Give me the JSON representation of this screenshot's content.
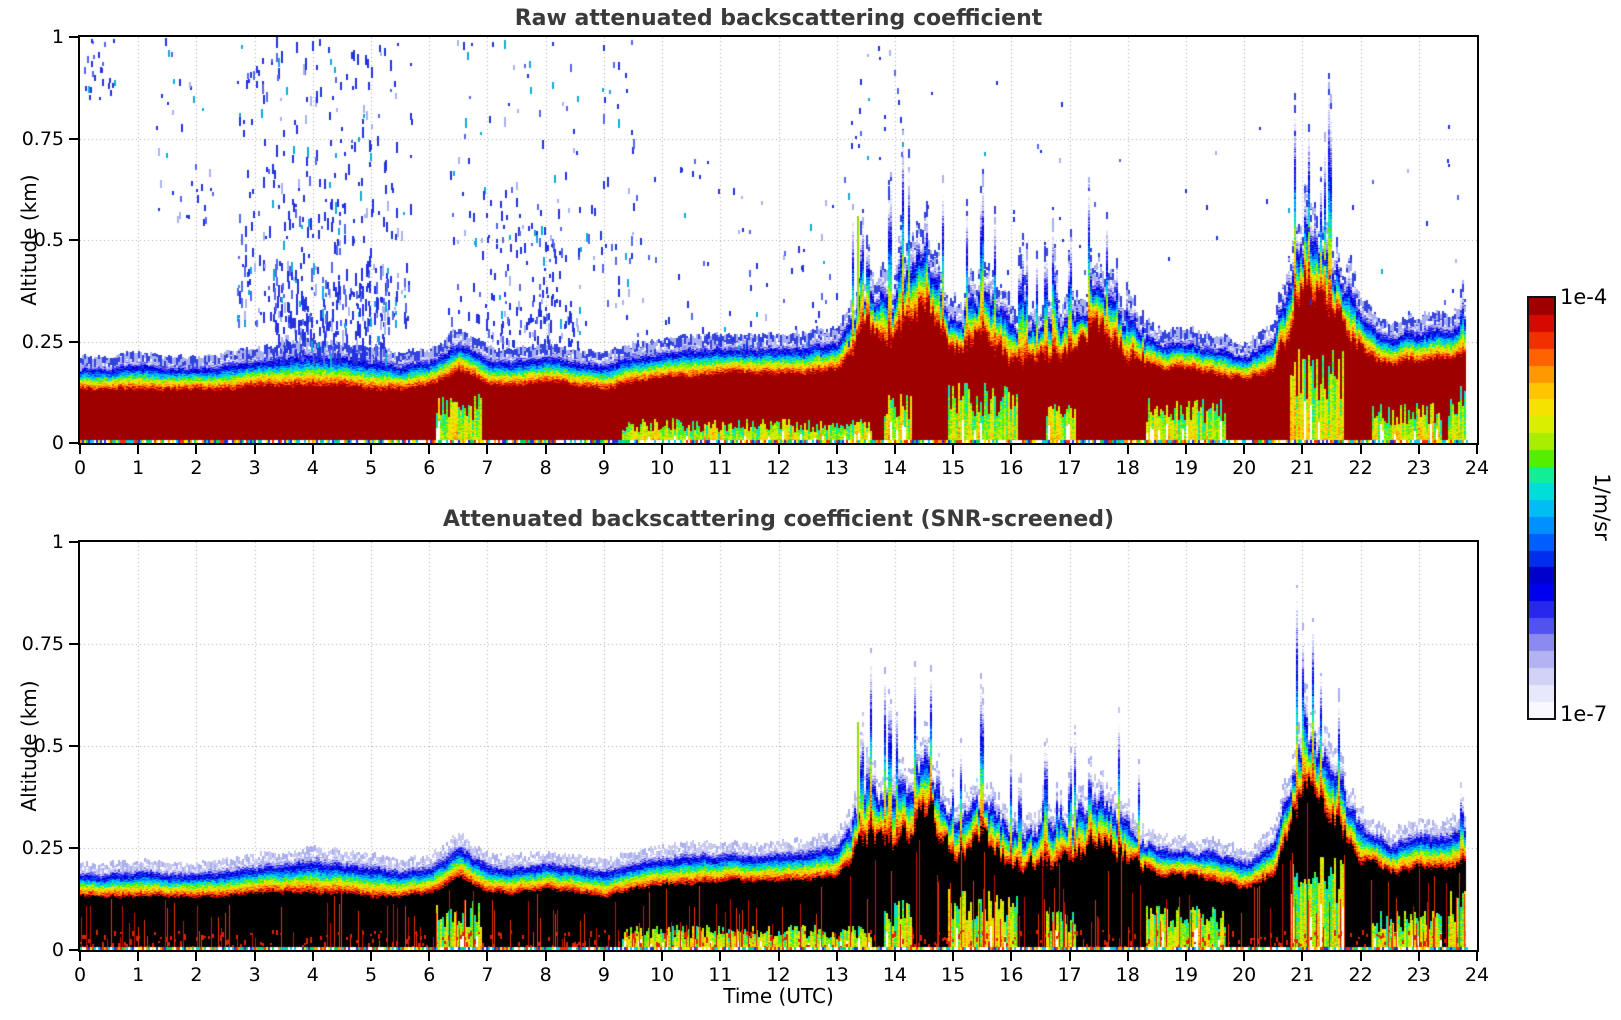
{
  "figure": {
    "background": "#ffffff",
    "title_color": "#3a3a3a",
    "grid_color": "#aaaaaa",
    "axis_color": "#000000"
  },
  "panels": [
    {
      "id": "raw",
      "title": "Raw attenuated backscattering coefficient",
      "ylabel": "Altitude (km)",
      "xlabel": ""
    },
    {
      "id": "screened",
      "title": "Attenuated backscattering coefficient (SNR-screened)",
      "ylabel": "Altitude (km)",
      "xlabel": "Time (UTC)"
    }
  ],
  "axes": {
    "x_tick_labels": [
      "0",
      "1",
      "2",
      "3",
      "4",
      "5",
      "6",
      "7",
      "8",
      "9",
      "10",
      "11",
      "12",
      "13",
      "14",
      "15",
      "16",
      "17",
      "18",
      "19",
      "20",
      "21",
      "22",
      "23",
      "24"
    ],
    "y_tick_labels_top_to_bottom": [
      "1",
      "0.75",
      "0.5",
      "0.25",
      "0"
    ],
    "x_range_hours": [
      0,
      24
    ],
    "y_range_km": [
      0,
      1
    ],
    "grid": "dotted, vertical each hour, horizontal at 0.25/0.5/0.75"
  },
  "colorbar": {
    "top_label": "1e-4",
    "bottom_label": "1e-7",
    "unit_label": "1/m/sr",
    "scale": "log10",
    "levels": 25
  },
  "chart_data": {
    "type": "heatmap",
    "title": "Attenuated backscattering coefficient, raw vs SNR-screened",
    "xlabel": "Time (UTC)",
    "ylabel": "Altitude (km)",
    "x_range": [
      0,
      24
    ],
    "y_range": [
      0,
      1
    ],
    "value_units": "1/m/sr",
    "value_range": [
      1e-07,
      0.0001
    ],
    "data_end_h": 23.82,
    "time_checkpoints_h": [
      0,
      0.5,
      1,
      1.5,
      2,
      2.5,
      3,
      3.5,
      4,
      4.5,
      5,
      5.5,
      6,
      6.5,
      7,
      7.5,
      8,
      8.5,
      9,
      9.5,
      10,
      10.5,
      11,
      11.5,
      12,
      12.5,
      13,
      13.5,
      14,
      14.5,
      15,
      15.5,
      16,
      16.5,
      17,
      17.5,
      18,
      18.5,
      19,
      19.5,
      20,
      20.5,
      21,
      21.5,
      22,
      22.5,
      23,
      23.5,
      24
    ],
    "aerosol_layer_top_km": [
      0.2,
      0.2,
      0.21,
      0.2,
      0.2,
      0.21,
      0.22,
      0.23,
      0.24,
      0.23,
      0.22,
      0.21,
      0.22,
      0.27,
      0.22,
      0.22,
      0.23,
      0.22,
      0.21,
      0.23,
      0.24,
      0.25,
      0.25,
      0.25,
      0.25,
      0.26,
      0.27,
      0.42,
      0.38,
      0.5,
      0.32,
      0.4,
      0.3,
      0.32,
      0.33,
      0.4,
      0.32,
      0.26,
      0.26,
      0.25,
      0.23,
      0.28,
      0.55,
      0.48,
      0.32,
      0.28,
      0.3,
      0.3,
      0.34
    ],
    "strong_core_top_km": [
      0.13,
      0.13,
      0.13,
      0.13,
      0.13,
      0.13,
      0.14,
      0.14,
      0.14,
      0.14,
      0.13,
      0.13,
      0.14,
      0.18,
      0.14,
      0.14,
      0.15,
      0.14,
      0.13,
      0.15,
      0.16,
      0.16,
      0.17,
      0.17,
      0.17,
      0.17,
      0.18,
      0.28,
      0.25,
      0.35,
      0.22,
      0.27,
      0.2,
      0.21,
      0.22,
      0.28,
      0.22,
      0.18,
      0.18,
      0.17,
      0.15,
      0.18,
      0.4,
      0.33,
      0.22,
      0.19,
      0.2,
      0.2,
      0.23
    ],
    "spiky_periods_h": [
      [
        13.2,
        18.3
      ],
      [
        20.55,
        22.0
      ]
    ],
    "spikes": [
      {
        "t": 13.42,
        "h": 0.53
      },
      {
        "t": 13.55,
        "h": 0.46
      },
      {
        "t": 13.9,
        "h": 0.63
      },
      {
        "t": 14.1,
        "h": 0.45
      },
      {
        "t": 14.35,
        "h": 0.5
      },
      {
        "t": 14.55,
        "h": 0.56
      },
      {
        "t": 14.75,
        "h": 0.46
      },
      {
        "t": 15.5,
        "h": 0.63
      },
      {
        "t": 16.15,
        "h": 0.42
      },
      {
        "t": 16.6,
        "h": 0.47
      },
      {
        "t": 17.0,
        "h": 0.45
      },
      {
        "t": 17.35,
        "h": 0.44
      },
      {
        "t": 17.55,
        "h": 0.42
      },
      {
        "t": 18.0,
        "h": 0.36
      },
      {
        "t": 21.05,
        "h": 0.62
      },
      {
        "t": 21.2,
        "h": 0.55
      },
      {
        "t": 21.45,
        "h": 0.5
      },
      {
        "t": 23.75,
        "h": 0.38
      }
    ],
    "colored_streaks": [
      {
        "t": 13.35,
        "z0": 0.3,
        "z1": 0.56,
        "color": "#99dd00"
      }
    ],
    "surface_patches": [
      {
        "t0": 6.1,
        "t1": 6.9,
        "z": 0.1
      },
      {
        "t0": 9.3,
        "t1": 13.6,
        "z": 0.05
      },
      {
        "t0": 13.8,
        "t1": 14.3,
        "z": 0.1
      },
      {
        "t0": 14.9,
        "t1": 16.1,
        "z": 0.12
      },
      {
        "t0": 16.6,
        "t1": 17.1,
        "z": 0.08
      },
      {
        "t0": 18.3,
        "t1": 19.7,
        "z": 0.09
      },
      {
        "t0": 20.8,
        "t1": 21.7,
        "z": 0.19
      },
      {
        "t0": 22.2,
        "t1": 23.4,
        "z": 0.08
      },
      {
        "t0": 23.5,
        "t1": 23.8,
        "z": 0.12
      }
    ],
    "noise_clusters_raw_panel": [
      {
        "t0": 0.05,
        "t1": 0.6,
        "z0": 0.85,
        "z1": 1.0,
        "n": 25,
        "l0": 3,
        "l1": 7
      },
      {
        "t0": 1.3,
        "t1": 2.4,
        "z0": 0.55,
        "z1": 1.0,
        "n": 35,
        "l0": 3,
        "l1": 8
      },
      {
        "t0": 2.7,
        "t1": 5.7,
        "z0": 0.3,
        "z1": 1.0,
        "n": 380,
        "l0": 3,
        "l1": 12
      },
      {
        "t0": 3.3,
        "t1": 5.3,
        "z0": 0.22,
        "z1": 0.45,
        "n": 220,
        "l0": 4,
        "l1": 14
      },
      {
        "t0": 6.3,
        "t1": 9.5,
        "z0": 0.3,
        "z1": 1.0,
        "n": 170,
        "l0": 3,
        "l1": 10
      },
      {
        "t0": 7.0,
        "t1": 8.6,
        "z0": 0.25,
        "z1": 0.6,
        "n": 120,
        "l0": 3,
        "l1": 10
      },
      {
        "t0": 9.5,
        "t1": 13.2,
        "z0": 0.22,
        "z1": 0.7,
        "n": 90,
        "l0": 3,
        "l1": 7
      },
      {
        "t0": 13.2,
        "t1": 14.2,
        "z0": 0.7,
        "z1": 1.0,
        "n": 22,
        "l0": 3,
        "l1": 6
      },
      {
        "t0": 14.5,
        "t1": 20.5,
        "z0": 0.4,
        "z1": 1.0,
        "n": 28,
        "l0": 3,
        "l1": 6
      },
      {
        "t0": 20.5,
        "t1": 23.8,
        "z0": 0.35,
        "z1": 0.8,
        "n": 22,
        "l0": 3,
        "l1": 6
      }
    ],
    "panels": [
      {
        "name": "raw",
        "core_style": "darkred",
        "noise_speckles": true
      },
      {
        "name": "snr_screened",
        "core_style": "black",
        "noise_speckles": false
      }
    ],
    "colormap_stops": [
      [
        0.0,
        "#ffffff"
      ],
      [
        0.05,
        "#eeeefc"
      ],
      [
        0.11,
        "#ccccf5"
      ],
      [
        0.17,
        "#9999ee"
      ],
      [
        0.23,
        "#4444ee"
      ],
      [
        0.3,
        "#0000ee"
      ],
      [
        0.34,
        "#0000cc"
      ],
      [
        0.4,
        "#0044ff"
      ],
      [
        0.46,
        "#0090ff"
      ],
      [
        0.52,
        "#00d4ee"
      ],
      [
        0.57,
        "#00eebb"
      ],
      [
        0.62,
        "#55ee00"
      ],
      [
        0.67,
        "#bbee00"
      ],
      [
        0.72,
        "#eeee00"
      ],
      [
        0.77,
        "#ffd000"
      ],
      [
        0.82,
        "#ff9900"
      ],
      [
        0.87,
        "#ff5500"
      ],
      [
        0.91,
        "#ee2200"
      ],
      [
        0.95,
        "#cc0000"
      ],
      [
        1.0,
        "#800000"
      ]
    ]
  }
}
